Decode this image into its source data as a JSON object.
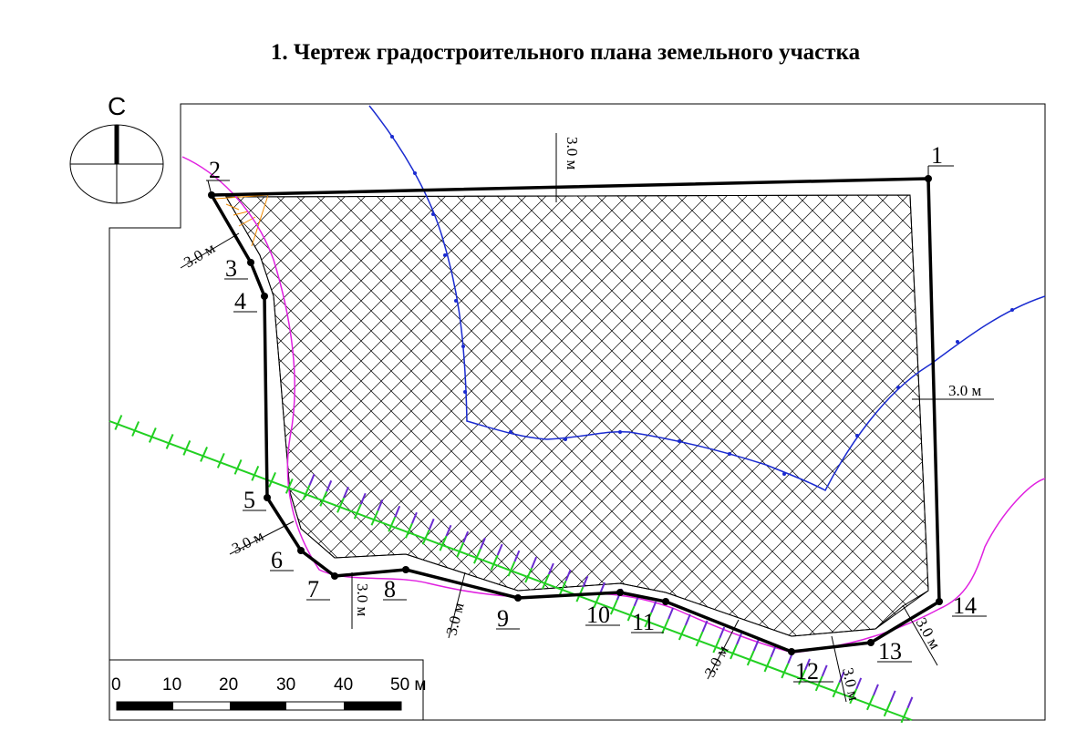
{
  "title": "1. Чертеж градостроительного плана земельного участка",
  "north_arrow": {
    "label": "С"
  },
  "points": [
    {
      "id": "1",
      "label": "1"
    },
    {
      "id": "2",
      "label": "2"
    },
    {
      "id": "3",
      "label": "3"
    },
    {
      "id": "4",
      "label": "4"
    },
    {
      "id": "5",
      "label": "5"
    },
    {
      "id": "6",
      "label": "6"
    },
    {
      "id": "7",
      "label": "7"
    },
    {
      "id": "8",
      "label": "8"
    },
    {
      "id": "9",
      "label": "9"
    },
    {
      "id": "10",
      "label": "10"
    },
    {
      "id": "11",
      "label": "11"
    },
    {
      "id": "12",
      "label": "12"
    },
    {
      "id": "13",
      "label": "13"
    },
    {
      "id": "14",
      "label": "14"
    }
  ],
  "setbacks": {
    "top": "3.0 м",
    "right": "3.0 м",
    "left_upper": "3.0 м",
    "left_lower": "3.0 м",
    "bottom_7": "3.0 м",
    "bottom_8": "3.0 м",
    "bottom_11": "3.0 м",
    "bottom_12": "3.0 м",
    "bottom_14": "3.0 м"
  },
  "scale_bar": {
    "ticks": [
      "0",
      "10",
      "20",
      "30",
      "40",
      "50 м"
    ],
    "unit": "м"
  },
  "colors": {
    "boundary": "#000000",
    "hatch": "#000000",
    "blue_line": "#1a2bd0",
    "magenta_line": "#e020e0",
    "green_line": "#22d022",
    "purple_ticks": "#6a2bd0",
    "orange": "#f08a00"
  }
}
